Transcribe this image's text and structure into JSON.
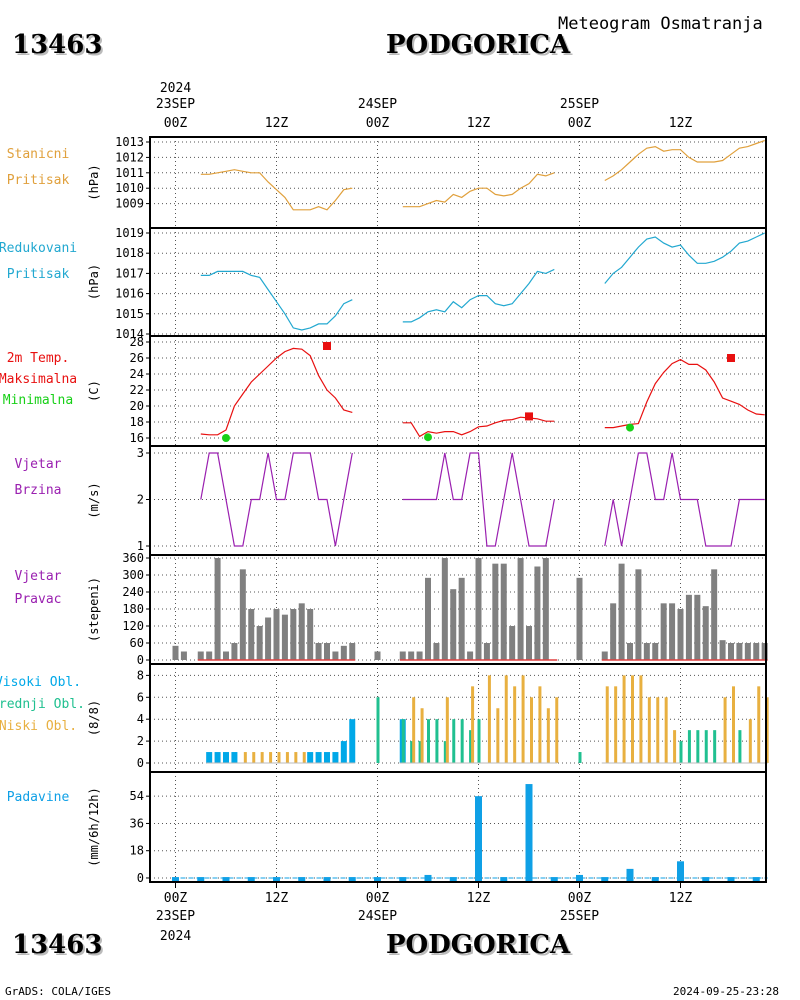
{
  "header": {
    "station_id": "13463",
    "city": "PODGORICA",
    "subtitle": "Meteogram Osmatranja"
  },
  "footer": {
    "left": "GrADS: COLA/IGES",
    "right": "2024-09-25-23:28"
  },
  "x_axis": {
    "top_year": "2024",
    "bottom_year": "2024",
    "ticks": [
      {
        "hour": 0,
        "time": "00Z",
        "date": "23SEP"
      },
      {
        "hour": 12,
        "time": "12Z",
        "date": ""
      },
      {
        "hour": 24,
        "time": "00Z",
        "date": "24SEP"
      },
      {
        "hour": 36,
        "time": "12Z",
        "date": ""
      },
      {
        "hour": 48,
        "time": "00Z",
        "date": "25SEP"
      },
      {
        "hour": 60,
        "time": "12Z",
        "date": ""
      }
    ]
  },
  "colors": {
    "pressure": "#e0a03c",
    "reduced": "#22a8d0",
    "tmax": "#e81010",
    "tmin": "#18d018",
    "wind": "#9a20b0",
    "direction": "#808080",
    "dir_baseline": "#e04040",
    "cloud_high": "#00a8e8",
    "cloud_mid": "#20c090",
    "cloud_low": "#e8b040",
    "precip": "#0fa0e6"
  },
  "chart_data": [
    {
      "type": "line",
      "id": "station-pressure",
      "labels": [
        "Stanicni",
        "Pritisak"
      ],
      "ylabel": "(hPa)",
      "ylim": [
        1008,
        1013
      ],
      "yticks": [
        1009,
        1010,
        1011,
        1012,
        1013
      ],
      "series": [
        {
          "x": [
            3,
            4,
            5,
            6,
            7,
            8,
            9,
            10,
            11,
            12,
            13,
            14,
            15,
            16,
            17,
            18,
            19,
            20,
            21
          ],
          "y": [
            1010.9,
            1010.9,
            1011.0,
            1011.1,
            1011.2,
            1011.1,
            1011.0,
            1011.0,
            1010.4,
            1009.9,
            1009.4,
            1008.6,
            1008.6,
            1008.6,
            1008.8,
            1008.6,
            1009.2,
            1009.9,
            1010.0
          ]
        },
        {
          "x": [
            27,
            28,
            29,
            30,
            31,
            32,
            33,
            34,
            35,
            36,
            37,
            38,
            39,
            40,
            41,
            42,
            43,
            44,
            45
          ],
          "y": [
            1008.8,
            1008.8,
            1008.8,
            1009.0,
            1009.2,
            1009.1,
            1009.6,
            1009.4,
            1009.8,
            1010.0,
            1010.0,
            1009.6,
            1009.5,
            1009.6,
            1010.0,
            1010.3,
            1010.9,
            1010.8,
            1011.0
          ]
        },
        {
          "x": [
            51,
            52,
            53,
            54,
            55,
            56,
            57,
            58,
            59,
            60,
            61,
            62,
            63,
            64,
            65,
            66,
            67,
            68,
            69,
            70
          ],
          "y": [
            1010.5,
            1010.8,
            1011.2,
            1011.7,
            1012.2,
            1012.6,
            1012.7,
            1012.4,
            1012.5,
            1012.5,
            1012.0,
            1011.7,
            1011.7,
            1011.7,
            1011.8,
            1012.2,
            1012.6,
            1012.7,
            1012.9,
            1013.1
          ]
        }
      ]
    },
    {
      "type": "line",
      "id": "reduced-pressure",
      "labels": [
        "Redukovani",
        "Pritisak"
      ],
      "ylabel": "(hPa)",
      "ylim": [
        1014,
        1019
      ],
      "yticks": [
        1014,
        1015,
        1016,
        1017,
        1018,
        1019
      ],
      "series": [
        {
          "x": [
            3,
            4,
            5,
            6,
            7,
            8,
            9,
            10,
            11,
            12,
            13,
            14,
            15,
            16,
            17,
            18,
            19,
            20,
            21
          ],
          "y": [
            1016.9,
            1016.9,
            1017.1,
            1017.1,
            1017.1,
            1017.1,
            1016.9,
            1016.8,
            1016.2,
            1015.6,
            1015.0,
            1014.3,
            1014.2,
            1014.3,
            1014.5,
            1014.5,
            1014.9,
            1015.5,
            1015.7
          ]
        },
        {
          "x": [
            27,
            28,
            29,
            30,
            31,
            32,
            33,
            34,
            35,
            36,
            37,
            38,
            39,
            40,
            41,
            42,
            43,
            44,
            45
          ],
          "y": [
            1014.6,
            1014.6,
            1014.8,
            1015.1,
            1015.2,
            1015.1,
            1015.6,
            1015.3,
            1015.7,
            1015.9,
            1015.9,
            1015.5,
            1015.4,
            1015.5,
            1016.0,
            1016.5,
            1017.1,
            1017.0,
            1017.2
          ]
        },
        {
          "x": [
            51,
            52,
            53,
            54,
            55,
            56,
            57,
            58,
            59,
            60,
            61,
            62,
            63,
            64,
            65,
            66,
            67,
            68,
            69,
            70
          ],
          "y": [
            1016.5,
            1017.0,
            1017.3,
            1017.8,
            1018.3,
            1018.7,
            1018.8,
            1018.5,
            1018.3,
            1018.4,
            1017.9,
            1017.5,
            1017.5,
            1017.6,
            1017.8,
            1018.1,
            1018.5,
            1018.6,
            1018.8,
            1019.0
          ]
        }
      ]
    },
    {
      "type": "line",
      "id": "temperature",
      "labels": [
        "2m Temp.",
        "Maksimalna",
        "Minimalna"
      ],
      "ylabel": "(C)",
      "ylim": [
        15,
        28.5
      ],
      "yticks": [
        16,
        18,
        20,
        22,
        24,
        26,
        28
      ],
      "series": [
        {
          "x": [
            3,
            4,
            5,
            6,
            7,
            8,
            9,
            10,
            11,
            12,
            13,
            14,
            15,
            16,
            17,
            18,
            19,
            20,
            21
          ],
          "y": [
            16.5,
            16.4,
            16.4,
            17.0,
            20.0,
            21.5,
            23.0,
            24.0,
            25.0,
            26.0,
            26.8,
            27.2,
            27.1,
            26.3,
            23.8,
            22.0,
            21.0,
            19.5,
            19.2
          ]
        },
        {
          "x": [
            27,
            28,
            29,
            30,
            31,
            32,
            33,
            34,
            35,
            36,
            37,
            38,
            39,
            40,
            41,
            42,
            43,
            44,
            45
          ],
          "y": [
            17.9,
            17.9,
            16.2,
            16.8,
            16.6,
            16.8,
            16.8,
            16.4,
            16.8,
            17.4,
            17.5,
            17.9,
            18.2,
            18.3,
            18.6,
            18.5,
            18.4,
            18.1,
            18.1
          ]
        },
        {
          "x": [
            51,
            52,
            53,
            54,
            55,
            56,
            57,
            58,
            59,
            60,
            61,
            62,
            63,
            64,
            65,
            66,
            67,
            68,
            69,
            70
          ],
          "y": [
            17.3,
            17.3,
            17.5,
            17.7,
            17.8,
            20.5,
            22.8,
            24.2,
            25.3,
            25.8,
            25.2,
            25.2,
            24.5,
            23.0,
            21.0,
            20.6,
            20.2,
            19.5,
            19.0,
            18.9
          ]
        }
      ],
      "max_markers": [
        {
          "x": 18,
          "y": 27.5
        },
        {
          "x": 42,
          "y": 18.7
        },
        {
          "x": 66,
          "y": 26.0
        }
      ],
      "min_markers": [
        {
          "x": 6,
          "y": 16.0
        },
        {
          "x": 30,
          "y": 16.1
        },
        {
          "x": 54,
          "y": 17.3
        }
      ]
    },
    {
      "type": "line",
      "id": "wind-speed",
      "labels": [
        "Vjetar",
        "Brzina"
      ],
      "ylabel": "(m/s)",
      "ylim": [
        1,
        3
      ],
      "yticks": [
        1,
        2,
        3
      ],
      "series": [
        {
          "x": [
            3,
            4,
            5,
            6,
            7,
            8,
            9,
            10,
            11,
            12,
            13,
            14,
            15,
            16,
            17,
            18,
            19,
            20,
            21
          ],
          "y": [
            2,
            3,
            3,
            2,
            1,
            1,
            2,
            2,
            3,
            2,
            2,
            3,
            3,
            3,
            2,
            2,
            1,
            2,
            3
          ]
        },
        {
          "x": [
            27,
            28,
            29,
            30,
            31,
            32,
            33,
            34,
            35,
            36,
            37,
            38,
            39,
            40,
            41,
            42,
            43,
            44,
            45
          ],
          "y": [
            2,
            2,
            2,
            2,
            2,
            3,
            2,
            2,
            3,
            3,
            1,
            1,
            2,
            3,
            2,
            1,
            1,
            1,
            2
          ]
        },
        {
          "x": [
            51,
            52,
            53,
            54,
            55,
            56,
            57,
            58,
            59,
            60,
            61,
            62,
            63,
            64,
            65,
            66,
            67,
            68,
            69,
            70
          ],
          "y": [
            1,
            2,
            1,
            2,
            3,
            3,
            2,
            2,
            3,
            2,
            2,
            2,
            1,
            1,
            1,
            1,
            2,
            2,
            2,
            2
          ]
        }
      ]
    },
    {
      "type": "bar",
      "id": "wind-direction",
      "labels": [
        "Vjetar",
        "Pravac"
      ],
      "ylabel": "(stepeni)",
      "ylim": [
        0,
        360
      ],
      "yticks": [
        0,
        60,
        120,
        180,
        240,
        300,
        360
      ],
      "x": [
        0,
        1,
        3,
        4,
        5,
        6,
        7,
        8,
        9,
        10,
        11,
        12,
        13,
        14,
        15,
        16,
        17,
        18,
        19,
        20,
        21,
        24,
        27,
        28,
        29,
        30,
        31,
        32,
        33,
        34,
        35,
        36,
        37,
        38,
        39,
        40,
        41,
        42,
        43,
        44,
        45,
        48,
        51,
        52,
        53,
        54,
        55,
        56,
        57,
        58,
        59,
        60,
        61,
        62,
        63,
        64,
        65,
        66,
        67,
        68,
        69,
        70
      ],
      "values": [
        50,
        30,
        30,
        30,
        360,
        30,
        60,
        320,
        180,
        120,
        150,
        180,
        160,
        180,
        200,
        180,
        60,
        60,
        30,
        50,
        60,
        30,
        30,
        30,
        30,
        290,
        60,
        360,
        250,
        290,
        30,
        360,
        60,
        340,
        340,
        120,
        360,
        120,
        330,
        360,
        0,
        290,
        30,
        200,
        340,
        60,
        320,
        60,
        60,
        200,
        200,
        180,
        230,
        230,
        190,
        320,
        70,
        60,
        60,
        60,
        60,
        60
      ]
    },
    {
      "type": "bar",
      "id": "cloud-cover",
      "labels": [
        "Visoki Obl.",
        "Srednji Obl.",
        "Niski Obl."
      ],
      "ylabel": "(8/8)",
      "ylim": [
        0,
        8.4
      ],
      "yticks": [
        0,
        2,
        4,
        6,
        8
      ],
      "x": [
        4,
        5,
        6,
        7,
        8,
        9,
        10,
        11,
        12,
        13,
        14,
        15,
        16,
        17,
        18,
        19,
        20,
        21,
        24,
        27,
        28,
        29,
        30,
        31,
        32,
        33,
        34,
        35,
        36,
        37,
        38,
        39,
        40,
        41,
        42,
        43,
        44,
        45,
        48,
        51,
        52,
        53,
        54,
        55,
        56,
        57,
        58,
        59,
        60,
        61,
        62,
        63,
        64,
        65,
        66,
        67,
        68,
        69,
        70
      ],
      "series": [
        {
          "name": "Visoki Obl.",
          "values": [
            1,
            1,
            1,
            1,
            0,
            0,
            0,
            0,
            0,
            0,
            0,
            0,
            1,
            1,
            1,
            1,
            2,
            4,
            0,
            4,
            0,
            0,
            0,
            0,
            0,
            0,
            0,
            0,
            0,
            0,
            0,
            0,
            0,
            0,
            0,
            0,
            0,
            0,
            0,
            0,
            0,
            0,
            0,
            0,
            0,
            0,
            0,
            0,
            0,
            0,
            0,
            0,
            0,
            0,
            0,
            0,
            0,
            0,
            0
          ]
        },
        {
          "name": "Srednji Obl.",
          "values": [
            0,
            0,
            0,
            0,
            0,
            0,
            0,
            0,
            0,
            0,
            0,
            0,
            0,
            0,
            0,
            0,
            0,
            0,
            6,
            4,
            2,
            2,
            4,
            4,
            2,
            4,
            4,
            3,
            4,
            0,
            0,
            0,
            0,
            0,
            0,
            0,
            0,
            0,
            1,
            0,
            0,
            0,
            0,
            0,
            0,
            0,
            0,
            0,
            2,
            3,
            3,
            3,
            3,
            0,
            0,
            3,
            0,
            0,
            0
          ]
        },
        {
          "name": "Niski Obl.",
          "values": [
            0,
            0,
            0,
            0,
            1,
            1,
            1,
            1,
            1,
            1,
            1,
            1,
            0,
            0,
            0,
            0,
            0,
            0,
            0,
            0,
            6,
            5,
            0,
            0,
            6,
            0,
            0,
            7,
            0,
            8,
            5,
            8,
            7,
            8,
            6,
            7,
            5,
            6,
            0,
            7,
            7,
            8,
            8,
            8,
            6,
            6,
            6,
            3,
            0,
            0,
            0,
            0,
            0,
            6,
            7,
            0,
            4,
            7,
            6
          ]
        }
      ]
    },
    {
      "type": "bar",
      "id": "precipitation",
      "labels": [
        "Padavine"
      ],
      "ylabel": "(mm/6h/12h)",
      "ylim": [
        -2,
        66
      ],
      "yticks": [
        0,
        18,
        36,
        54
      ],
      "x": [
        0,
        3,
        6,
        9,
        12,
        15,
        18,
        21,
        24,
        27,
        30,
        33,
        36,
        39,
        42,
        45,
        48,
        51,
        54,
        57,
        60,
        63,
        66,
        69
      ],
      "values": [
        0,
        0,
        0,
        0,
        0,
        0,
        0,
        0,
        0,
        0,
        2,
        0,
        54,
        0,
        62,
        0,
        2,
        0,
        6,
        0,
        11,
        0,
        0,
        0
      ]
    }
  ]
}
